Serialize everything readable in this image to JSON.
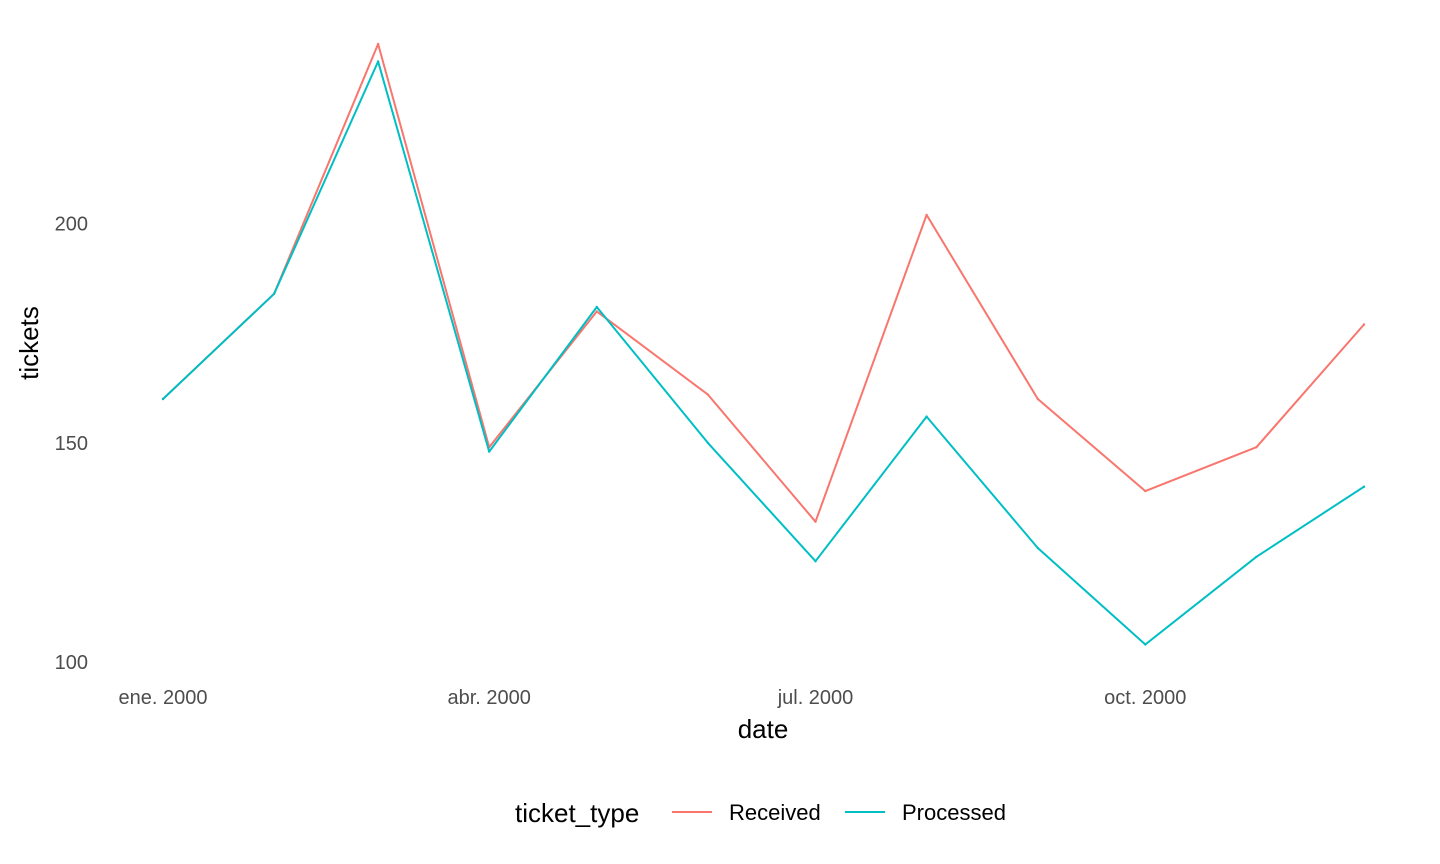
{
  "chart_data": {
    "type": "line",
    "xlabel": "date",
    "ylabel": "tickets",
    "x": [
      "2000-01-01",
      "2000-02-01",
      "2000-03-01",
      "2000-04-01",
      "2000-05-01",
      "2000-06-01",
      "2000-07-01",
      "2000-08-01",
      "2000-09-01",
      "2000-10-01",
      "2000-11-01",
      "2000-12-01"
    ],
    "x_ticks": [
      {
        "date": "2000-01-01",
        "label": "ene. 2000"
      },
      {
        "date": "2000-04-01",
        "label": "abr. 2000"
      },
      {
        "date": "2000-07-01",
        "label": "jul. 2000"
      },
      {
        "date": "2000-10-01",
        "label": "oct. 2000"
      }
    ],
    "y_ticks": [
      100,
      150,
      200
    ],
    "xlim": [
      "2000-01-01",
      "2000-12-01"
    ],
    "ylim": [
      100,
      241
    ],
    "grid": false,
    "legend": {
      "title": "ticket_type",
      "position": "bottom"
    },
    "series": [
      {
        "name": "Received",
        "color": "#F8766D",
        "values": [
          160,
          184,
          241,
          149,
          180,
          161,
          132,
          202,
          160,
          139,
          149,
          177
        ]
      },
      {
        "name": "Processed",
        "color": "#00BFC4",
        "values": [
          160,
          184,
          237,
          148,
          181,
          150,
          123,
          156,
          126,
          104,
          124,
          140
        ]
      }
    ]
  }
}
